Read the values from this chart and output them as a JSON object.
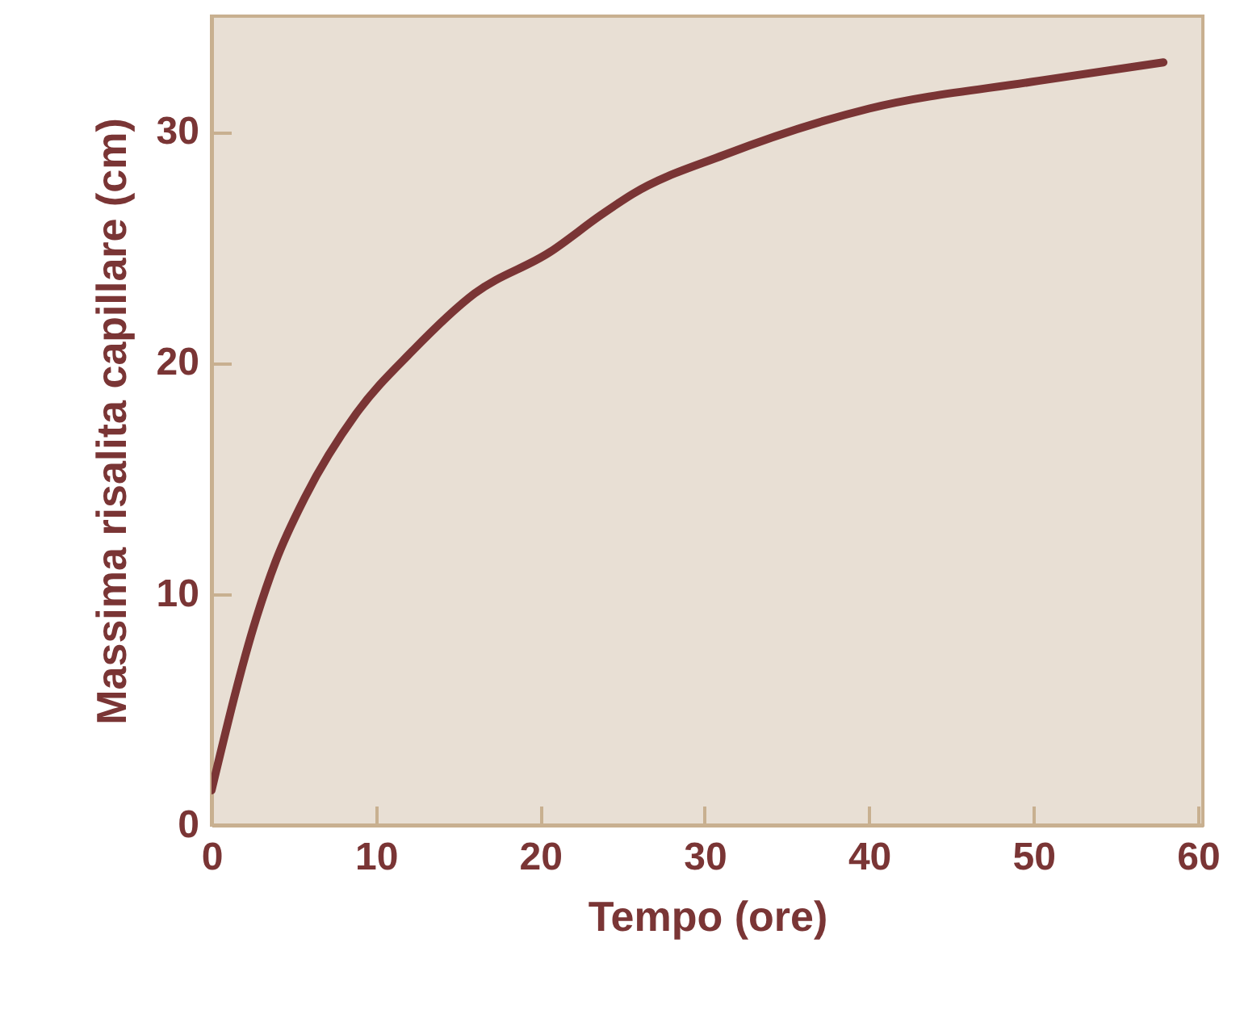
{
  "chart_data": {
    "type": "line",
    "xlabel": "Tempo (ore)",
    "ylabel": "Massima risalita capillare (cm)",
    "xlim": [
      0,
      60.3
    ],
    "ylim": [
      0,
      35
    ],
    "xticks": [
      0,
      10,
      20,
      30,
      40,
      50,
      60
    ],
    "yticks": [
      0,
      10,
      20,
      30
    ],
    "grid": false,
    "marker": "none",
    "line_style": "solid",
    "series": [
      {
        "color": "#7a3535",
        "x": [
          0,
          2.7,
          3.9,
          5.7,
          8.8,
          12.2,
          16.0,
          20.6,
          23.7,
          25.6,
          31.2,
          40,
          50.3,
          57.9
        ],
        "values": [
          1.5,
          8.9,
          11.4,
          14.2,
          17.8,
          20.5,
          23.0,
          24.8,
          26.4,
          27.3,
          29.0,
          31.0,
          32.2,
          33.0
        ]
      }
    ]
  }
}
